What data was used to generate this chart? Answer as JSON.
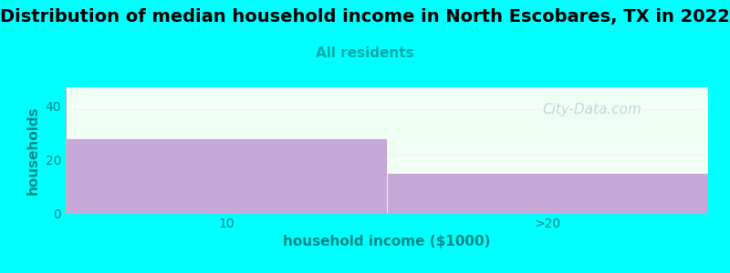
{
  "title": "Distribution of median household income in North Escobares, TX in 2022",
  "subtitle": "All residents",
  "categories": [
    "10",
    ">20"
  ],
  "values": [
    28,
    15
  ],
  "bar_color": "#c8a8d8",
  "bar_edgecolor": "#c8a8d8",
  "bg_color": "#00ffff",
  "plot_bg_color": "#f0fff4",
  "xlabel": "household income ($1000)",
  "ylabel": "households",
  "ylim": [
    0,
    47
  ],
  "yticks": [
    0,
    20,
    40
  ],
  "xlim": [
    0,
    2
  ],
  "title_fontsize": 14,
  "subtitle_fontsize": 11,
  "subtitle_color": "#00aaaa",
  "axis_label_color": "#008888",
  "tick_color": "#008888",
  "watermark": "City-Data.com",
  "watermark_color": "#aacccc",
  "watermark_fontsize": 11
}
